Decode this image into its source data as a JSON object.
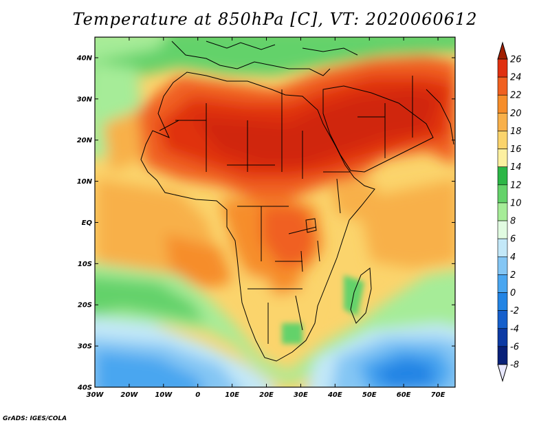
{
  "title": "Temperature at 850hPa [C], VT: 2020060612",
  "credit": "GrADS: IGES/COLA",
  "map": {
    "lon_ticks": [
      "30W",
      "20W",
      "10W",
      "0",
      "10E",
      "20E",
      "30E",
      "40E",
      "50E",
      "60E",
      "70E"
    ],
    "lat_ticks": [
      "40N",
      "30N",
      "20N",
      "10N",
      "EQ",
      "10S",
      "20S",
      "30S",
      "40S"
    ],
    "lon_range": [
      -30,
      75
    ],
    "lat_range": [
      -40,
      45
    ]
  },
  "colorbar": {
    "labels": [
      "26",
      "24",
      "22",
      "20",
      "18",
      "16",
      "14",
      "12",
      "10",
      "8",
      "6",
      "4",
      "2",
      "0",
      "-2",
      "-4",
      "-6",
      "-8"
    ],
    "colors": [
      "#a01e00",
      "#e03010",
      "#f06020",
      "#f68d2a",
      "#f8b04a",
      "#fbd46c",
      "#fdf0a0",
      "#2cb646",
      "#64d26a",
      "#a6ec98",
      "#e1fbe1",
      "#c3e8f8",
      "#84c6f4",
      "#4aa6f0",
      "#2284e4",
      "#1660cc",
      "#0c3aa4",
      "#082078"
    ]
  }
}
